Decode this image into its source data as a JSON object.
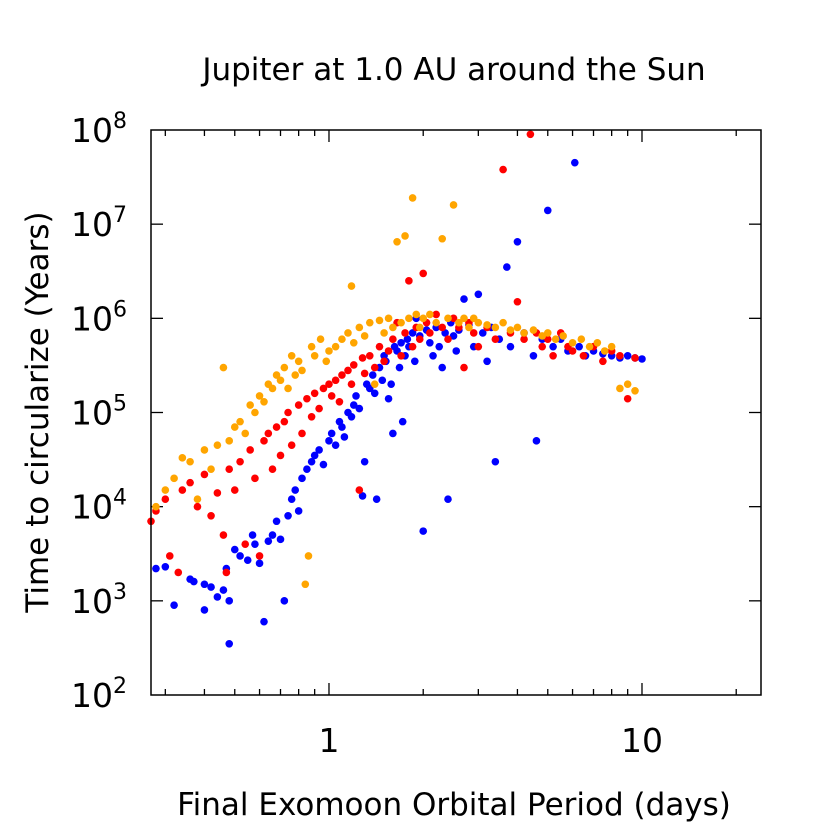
{
  "chart_data": {
    "type": "scatter",
    "title": "Jupiter at 1.0 AU around the Sun",
    "xlabel": "Final Exomoon Orbital Period (days)",
    "ylabel": "Time to circularize (Years)",
    "x_scale": "log",
    "y_scale": "log",
    "xlim": [
      0.27,
      24
    ],
    "ylim": [
      100,
      100000000
    ],
    "x_ticks": [
      {
        "value": 1,
        "label": "1"
      },
      {
        "value": 10,
        "label": "10"
      }
    ],
    "y_ticks": [
      {
        "value": 100,
        "base": "10",
        "exp": "2"
      },
      {
        "value": 1000,
        "base": "10",
        "exp": "3"
      },
      {
        "value": 10000,
        "base": "10",
        "exp": "4"
      },
      {
        "value": 100000,
        "base": "10",
        "exp": "5"
      },
      {
        "value": 1000000,
        "base": "10",
        "exp": "6"
      },
      {
        "value": 10000000,
        "base": "10",
        "exp": "7"
      },
      {
        "value": 100000000,
        "base": "10",
        "exp": "8"
      }
    ],
    "grid": false,
    "legend": "none",
    "series": [
      {
        "name": "blue",
        "color": "#0000ff",
        "points": [
          [
            0.28,
            2200
          ],
          [
            0.3,
            2300
          ],
          [
            0.32,
            900
          ],
          [
            0.36,
            1700
          ],
          [
            0.37,
            1600
          ],
          [
            0.4,
            800
          ],
          [
            0.4,
            1500
          ],
          [
            0.42,
            1400
          ],
          [
            0.44,
            1100
          ],
          [
            0.46,
            1300
          ],
          [
            0.48,
            1000
          ],
          [
            0.48,
            350
          ],
          [
            0.47,
            2200
          ],
          [
            0.5,
            3500
          ],
          [
            0.52,
            3000
          ],
          [
            0.55,
            2700
          ],
          [
            0.57,
            5000
          ],
          [
            0.58,
            4000
          ],
          [
            0.6,
            2500
          ],
          [
            0.62,
            600
          ],
          [
            0.64,
            4300
          ],
          [
            0.66,
            5000
          ],
          [
            0.68,
            7000
          ],
          [
            0.7,
            4500
          ],
          [
            0.72,
            1000
          ],
          [
            0.74,
            8000
          ],
          [
            0.76,
            12000
          ],
          [
            0.78,
            15000
          ],
          [
            0.8,
            9000
          ],
          [
            0.82,
            20000
          ],
          [
            0.85,
            25000
          ],
          [
            0.88,
            30000
          ],
          [
            0.9,
            35000
          ],
          [
            0.93,
            40000
          ],
          [
            0.96,
            28000
          ],
          [
            1.0,
            50000
          ],
          [
            1.02,
            60000
          ],
          [
            1.05,
            45000
          ],
          [
            1.08,
            80000
          ],
          [
            1.1,
            70000
          ],
          [
            1.12,
            55000
          ],
          [
            1.15,
            100000
          ],
          [
            1.18,
            90000
          ],
          [
            1.2,
            120000
          ],
          [
            1.22,
            150000
          ],
          [
            1.25,
            110000
          ],
          [
            1.28,
            13000
          ],
          [
            1.3,
            30000
          ],
          [
            1.32,
            200000
          ],
          [
            1.35,
            180000
          ],
          [
            1.38,
            250000
          ],
          [
            1.4,
            160000
          ],
          [
            1.42,
            12000
          ],
          [
            1.45,
            300000
          ],
          [
            1.48,
            220000
          ],
          [
            1.5,
            400000
          ],
          [
            1.52,
            350000
          ],
          [
            1.55,
            140000
          ],
          [
            1.58,
            200000
          ],
          [
            1.6,
            60000
          ],
          [
            1.62,
            500000
          ],
          [
            1.65,
            450000
          ],
          [
            1.68,
            300000
          ],
          [
            1.7,
            550000
          ],
          [
            1.72,
            80000
          ],
          [
            1.75,
            400000
          ],
          [
            1.78,
            600000
          ],
          [
            1.8,
            500000
          ],
          [
            1.85,
            700000
          ],
          [
            1.88,
            350000
          ],
          [
            1.9,
            1000000
          ],
          [
            1.95,
            650000
          ],
          [
            2.0,
            5500
          ],
          [
            2.05,
            750000
          ],
          [
            2.1,
            550000
          ],
          [
            2.15,
            400000
          ],
          [
            2.2,
            800000
          ],
          [
            2.25,
            500000
          ],
          [
            2.3,
            300000
          ],
          [
            2.35,
            700000
          ],
          [
            2.4,
            12000
          ],
          [
            2.45,
            900000
          ],
          [
            2.5,
            650000
          ],
          [
            2.55,
            450000
          ],
          [
            2.6,
            750000
          ],
          [
            2.7,
            1600000
          ],
          [
            2.8,
            850000
          ],
          [
            2.9,
            500000
          ],
          [
            3.0,
            1800000
          ],
          [
            3.1,
            700000
          ],
          [
            3.2,
            350000
          ],
          [
            3.3,
            800000
          ],
          [
            3.4,
            30000
          ],
          [
            3.5,
            600000
          ],
          [
            3.7,
            3500000
          ],
          [
            3.8,
            500000
          ],
          [
            4.0,
            6500000
          ],
          [
            4.2,
            700000
          ],
          [
            4.5,
            400000
          ],
          [
            4.6,
            50000
          ],
          [
            4.8,
            600000
          ],
          [
            5.0,
            14000000
          ],
          [
            5.2,
            500000
          ],
          [
            5.5,
            600000
          ],
          [
            5.8,
            450000
          ],
          [
            6.1,
            45000000
          ],
          [
            6.3,
            500000
          ],
          [
            6.6,
            400000
          ],
          [
            7.0,
            450000
          ],
          [
            7.5,
            420000
          ],
          [
            8.0,
            400000
          ],
          [
            8.5,
            380000
          ],
          [
            9.0,
            400000
          ],
          [
            9.5,
            380000
          ],
          [
            10.0,
            370000
          ]
        ]
      },
      {
        "name": "red",
        "color": "#ff0000",
        "points": [
          [
            0.27,
            7000
          ],
          [
            0.28,
            9000
          ],
          [
            0.3,
            12000
          ],
          [
            0.31,
            3000
          ],
          [
            0.33,
            2000
          ],
          [
            0.34,
            15000
          ],
          [
            0.36,
            18000
          ],
          [
            0.38,
            10000
          ],
          [
            0.4,
            22000
          ],
          [
            0.42,
            8000
          ],
          [
            0.44,
            14000
          ],
          [
            0.46,
            5000
          ],
          [
            0.47,
            2000
          ],
          [
            0.48,
            25000
          ],
          [
            0.5,
            15000
          ],
          [
            0.52,
            30000
          ],
          [
            0.54,
            4000
          ],
          [
            0.56,
            40000
          ],
          [
            0.58,
            20000
          ],
          [
            0.6,
            3000
          ],
          [
            0.62,
            50000
          ],
          [
            0.64,
            60000
          ],
          [
            0.66,
            25000
          ],
          [
            0.68,
            70000
          ],
          [
            0.7,
            35000
          ],
          [
            0.72,
            80000
          ],
          [
            0.74,
            100000
          ],
          [
            0.76,
            45000
          ],
          [
            0.8,
            120000
          ],
          [
            0.82,
            60000
          ],
          [
            0.85,
            140000
          ],
          [
            0.88,
            90000
          ],
          [
            0.9,
            160000
          ],
          [
            0.93,
            110000
          ],
          [
            0.96,
            180000
          ],
          [
            1.0,
            200000
          ],
          [
            1.02,
            150000
          ],
          [
            1.05,
            220000
          ],
          [
            1.08,
            130000
          ],
          [
            1.1,
            250000
          ],
          [
            1.15,
            280000
          ],
          [
            1.18,
            200000
          ],
          [
            1.2,
            320000
          ],
          [
            1.25,
            15000
          ],
          [
            1.28,
            380000
          ],
          [
            1.3,
            260000
          ],
          [
            1.35,
            400000
          ],
          [
            1.4,
            300000
          ],
          [
            1.45,
            500000
          ],
          [
            1.5,
            350000
          ],
          [
            1.55,
            450000
          ],
          [
            1.6,
            600000
          ],
          [
            1.65,
            900000
          ],
          [
            1.7,
            400000
          ],
          [
            1.75,
            700000
          ],
          [
            1.8,
            2500000
          ],
          [
            1.85,
            500000
          ],
          [
            1.9,
            800000
          ],
          [
            1.95,
            600000
          ],
          [
            2.0,
            3000000
          ],
          [
            2.05,
            900000
          ],
          [
            2.1,
            700000
          ],
          [
            2.2,
            1100000
          ],
          [
            2.3,
            800000
          ],
          [
            2.4,
            600000
          ],
          [
            2.5,
            1000000
          ],
          [
            2.6,
            800000
          ],
          [
            2.7,
            300000
          ],
          [
            2.8,
            900000
          ],
          [
            2.9,
            700000
          ],
          [
            3.0,
            500000
          ],
          [
            3.2,
            800000
          ],
          [
            3.4,
            600000
          ],
          [
            3.6,
            38000000
          ],
          [
            3.8,
            700000
          ],
          [
            4.0,
            1500000
          ],
          [
            4.2,
            600000
          ],
          [
            4.4,
            90000000
          ],
          [
            4.6,
            700000
          ],
          [
            4.8,
            500000
          ],
          [
            5.0,
            600000
          ],
          [
            5.2,
            400000
          ],
          [
            5.5,
            700000
          ],
          [
            5.8,
            500000
          ],
          [
            6.0,
            450000
          ],
          [
            6.5,
            400000
          ],
          [
            7.0,
            500000
          ],
          [
            7.5,
            350000
          ],
          [
            8.0,
            450000
          ],
          [
            8.5,
            400000
          ],
          [
            9.0,
            140000
          ],
          [
            9.5,
            380000
          ]
        ]
      },
      {
        "name": "orange",
        "color": "#ffa500",
        "points": [
          [
            0.28,
            10000
          ],
          [
            0.3,
            15000
          ],
          [
            0.32,
            20000
          ],
          [
            0.34,
            33000
          ],
          [
            0.36,
            30000
          ],
          [
            0.38,
            12000
          ],
          [
            0.4,
            40000
          ],
          [
            0.42,
            25000
          ],
          [
            0.44,
            45000
          ],
          [
            0.46,
            300000
          ],
          [
            0.48,
            50000
          ],
          [
            0.5,
            70000
          ],
          [
            0.52,
            80000
          ],
          [
            0.54,
            60000
          ],
          [
            0.56,
            120000
          ],
          [
            0.58,
            100000
          ],
          [
            0.6,
            150000
          ],
          [
            0.62,
            130000
          ],
          [
            0.64,
            200000
          ],
          [
            0.66,
            180000
          ],
          [
            0.68,
            250000
          ],
          [
            0.7,
            220000
          ],
          [
            0.72,
            300000
          ],
          [
            0.74,
            180000
          ],
          [
            0.76,
            400000
          ],
          [
            0.78,
            250000
          ],
          [
            0.8,
            350000
          ],
          [
            0.82,
            280000
          ],
          [
            0.84,
            1500
          ],
          [
            0.86,
            3000
          ],
          [
            0.88,
            500000
          ],
          [
            0.9,
            400000
          ],
          [
            0.94,
            600000
          ],
          [
            0.98,
            350000
          ],
          [
            1.0,
            450000
          ],
          [
            1.05,
            500000
          ],
          [
            1.1,
            600000
          ],
          [
            1.15,
            700000
          ],
          [
            1.18,
            2200000
          ],
          [
            1.2,
            550000
          ],
          [
            1.25,
            800000
          ],
          [
            1.3,
            650000
          ],
          [
            1.35,
            900000
          ],
          [
            1.4,
            200000
          ],
          [
            1.45,
            950000
          ],
          [
            1.5,
            700000
          ],
          [
            1.55,
            1000000
          ],
          [
            1.6,
            800000
          ],
          [
            1.65,
            6500000
          ],
          [
            1.7,
            900000
          ],
          [
            1.75,
            7500000
          ],
          [
            1.8,
            1000000
          ],
          [
            1.85,
            19000000
          ],
          [
            1.9,
            1100000
          ],
          [
            1.95,
            800000
          ],
          [
            2.0,
            1000000
          ],
          [
            2.1,
            1100000
          ],
          [
            2.2,
            900000
          ],
          [
            2.3,
            7000000
          ],
          [
            2.4,
            1000000
          ],
          [
            2.5,
            16000000
          ],
          [
            2.6,
            900000
          ],
          [
            2.7,
            1000000
          ],
          [
            2.8,
            800000
          ],
          [
            2.9,
            1000000
          ],
          [
            3.0,
            900000
          ],
          [
            3.2,
            850000
          ],
          [
            3.4,
            800000
          ],
          [
            3.6,
            900000
          ],
          [
            3.8,
            750000
          ],
          [
            4.0,
            800000
          ],
          [
            4.2,
            700000
          ],
          [
            4.5,
            750000
          ],
          [
            4.8,
            650000
          ],
          [
            5.0,
            700000
          ],
          [
            5.3,
            600000
          ],
          [
            5.6,
            650000
          ],
          [
            6.0,
            550000
          ],
          [
            6.4,
            600000
          ],
          [
            6.8,
            500000
          ],
          [
            7.2,
            550000
          ],
          [
            7.6,
            450000
          ],
          [
            8.0,
            500000
          ],
          [
            8.5,
            180000
          ],
          [
            9.0,
            200000
          ],
          [
            9.5,
            170000
          ]
        ]
      }
    ]
  }
}
